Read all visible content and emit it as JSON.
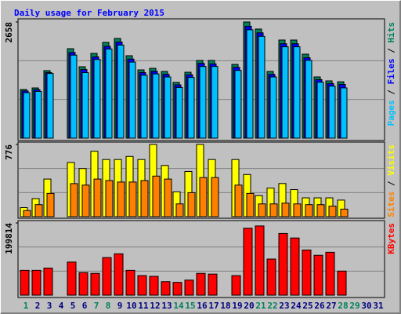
{
  "chart_data": {
    "type": "bar",
    "title": "Daily usage for February 2015",
    "categories": [
      "1",
      "2",
      "3",
      "4",
      "5",
      "6",
      "7",
      "8",
      "9",
      "10",
      "11",
      "12",
      "13",
      "14",
      "15",
      "16",
      "17",
      "18",
      "19",
      "20",
      "21",
      "22",
      "23",
      "24",
      "25",
      "26",
      "27",
      "28",
      "29",
      "30",
      "31"
    ],
    "label_colors": [
      "#00805c",
      "#000080",
      "#000080",
      "#000080",
      "#000080",
      "#000080",
      "#00805c",
      "#00805c",
      "#000080",
      "#000080",
      "#000080",
      "#000080",
      "#000080",
      "#00805c",
      "#00805c",
      "#000080",
      "#000080",
      "#000080",
      "#000080",
      "#000080",
      "#00805c",
      "#00805c",
      "#000080",
      "#000080",
      "#000080",
      "#000080",
      "#000080",
      "#00805c",
      "#00805c",
      "#000080",
      "#000080"
    ],
    "legend_separator": " / ",
    "panels": [
      {
        "ylim": [
          0,
          2658
        ],
        "yticks": [
          2658
        ],
        "series": [
          {
            "name": "Pages",
            "color": "#00c0ff",
            "values": [
              1040,
              1070,
              1480,
              0,
              1900,
              1500,
              1800,
              2040,
              2130,
              1740,
              1440,
              1470,
              1400,
              1160,
              1390,
              1640,
              1640,
              0,
              1550,
              2480,
              2330,
              1400,
              2090,
              2090,
              1780,
              1280,
              1190,
              1150,
              null,
              null,
              null
            ]
          },
          {
            "name": "Files",
            "color": "#0000ff",
            "values": [
              1080,
              1110,
              1500,
              0,
              1960,
              1570,
              1860,
              2100,
              2200,
              1810,
              1500,
              1530,
              1460,
              1220,
              1450,
              1710,
              1700,
              0,
              1620,
              2560,
              2410,
              1460,
              2160,
              2160,
              1840,
              1340,
              1250,
              1230,
              null,
              null,
              null
            ]
          },
          {
            "name": "Hits",
            "color": "#00805c",
            "values": [
              1113,
              1149,
              1545,
              0,
              2047,
              1634,
              1940,
              2191,
              2281,
              1886,
              1562,
              1598,
              1526,
              1275,
              1508,
              1778,
              1778,
              0,
              1688,
              2658,
              2496,
              1526,
              2245,
              2245,
              1922,
              1401,
              1311,
              1290,
              null,
              null,
              null
            ]
          }
        ]
      },
      {
        "ylim": [
          0,
          776
        ],
        "yticks": [
          776
        ],
        "series": [
          {
            "name": "Sites",
            "color": "#ff8000",
            "values": [
              65,
              129,
              250,
              0,
              355,
              339,
              404,
              388,
              372,
              372,
              388,
              436,
              404,
              137,
              258,
              420,
              420,
              0,
              339,
              250,
              137,
              137,
              145,
              137,
              129,
              129,
              113,
              81,
              null,
              null,
              null
            ]
          },
          {
            "name": "Visits",
            "color": "#ffff00",
            "values": [
              97,
              194,
              404,
              0,
              582,
              517,
              703,
              614,
              614,
              647,
              614,
              776,
              550,
              267,
              485,
              776,
              614,
              0,
              614,
              453,
              226,
              307,
              356,
              291,
              202,
              202,
              202,
              178,
              null,
              null,
              null
            ]
          }
        ]
      },
      {
        "ylim": [
          0,
          199814
        ],
        "yticks": [
          199814
        ],
        "series": [
          {
            "name": "KBytes",
            "color": "#ff0000",
            "values": [
              68686,
              68686,
              74930,
              0,
              91582,
              62442,
              60361,
              104070,
              114476,
              68686,
              54116,
              52035,
              37465,
              35383,
              41628,
              60361,
              58279,
              0,
              54116,
              185244,
              191488,
              99907,
              170675,
              158186,
              124883,
              110313,
              118639,
              66604,
              null,
              null,
              null
            ]
          }
        ]
      }
    ]
  }
}
